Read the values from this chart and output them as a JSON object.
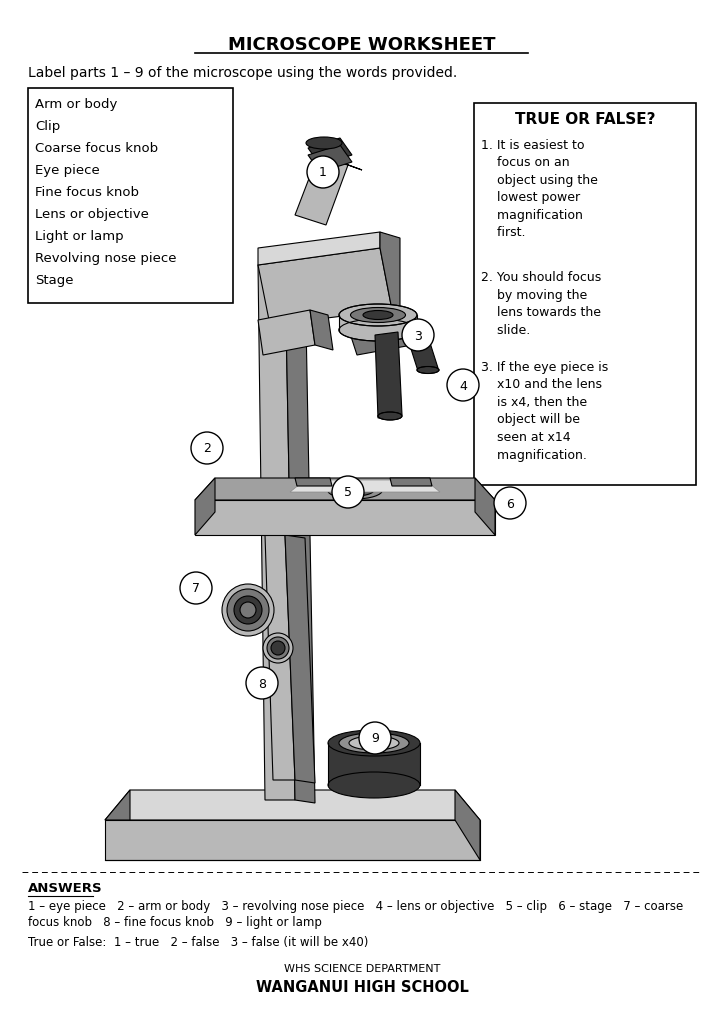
{
  "title": "MICROSCOPE WORKSHEET",
  "subtitle": "Label parts 1 – 9 of the microscope using the words provided.",
  "word_box_items": [
    "Arm or body",
    "Clip",
    "Coarse focus knob",
    "Eye piece",
    "Fine focus knob",
    "Lens or objective",
    "Light or lamp",
    "Revolving nose piece",
    "Stage"
  ],
  "true_false_title": "TRUE OR FALSE?",
  "answers_label": "ANSWERS",
  "answers_line1": "1 – eye piece   2 – arm or body   3 – revolving nose piece   4 – lens or objective   5 – clip   6 – stage   7 – coarse",
  "answers_line2": "focus knob   8 – fine focus knob   9 – light or lamp",
  "true_false_answers": "True or False:  1 – true   2 – false   3 – false (it will be x40)",
  "footer_line1": "WHS SCIENCE DEPARTMENT",
  "footer_line2": "WANGANUI HIGH SCHOOL",
  "bg_color": "#ffffff",
  "text_color": "#000000",
  "gray_light": "#b8b8b8",
  "gray_mid": "#787878",
  "gray_dark": "#383838",
  "gray_very_light": "#d8d8d8",
  "gray_stage": "#a0a0a0"
}
